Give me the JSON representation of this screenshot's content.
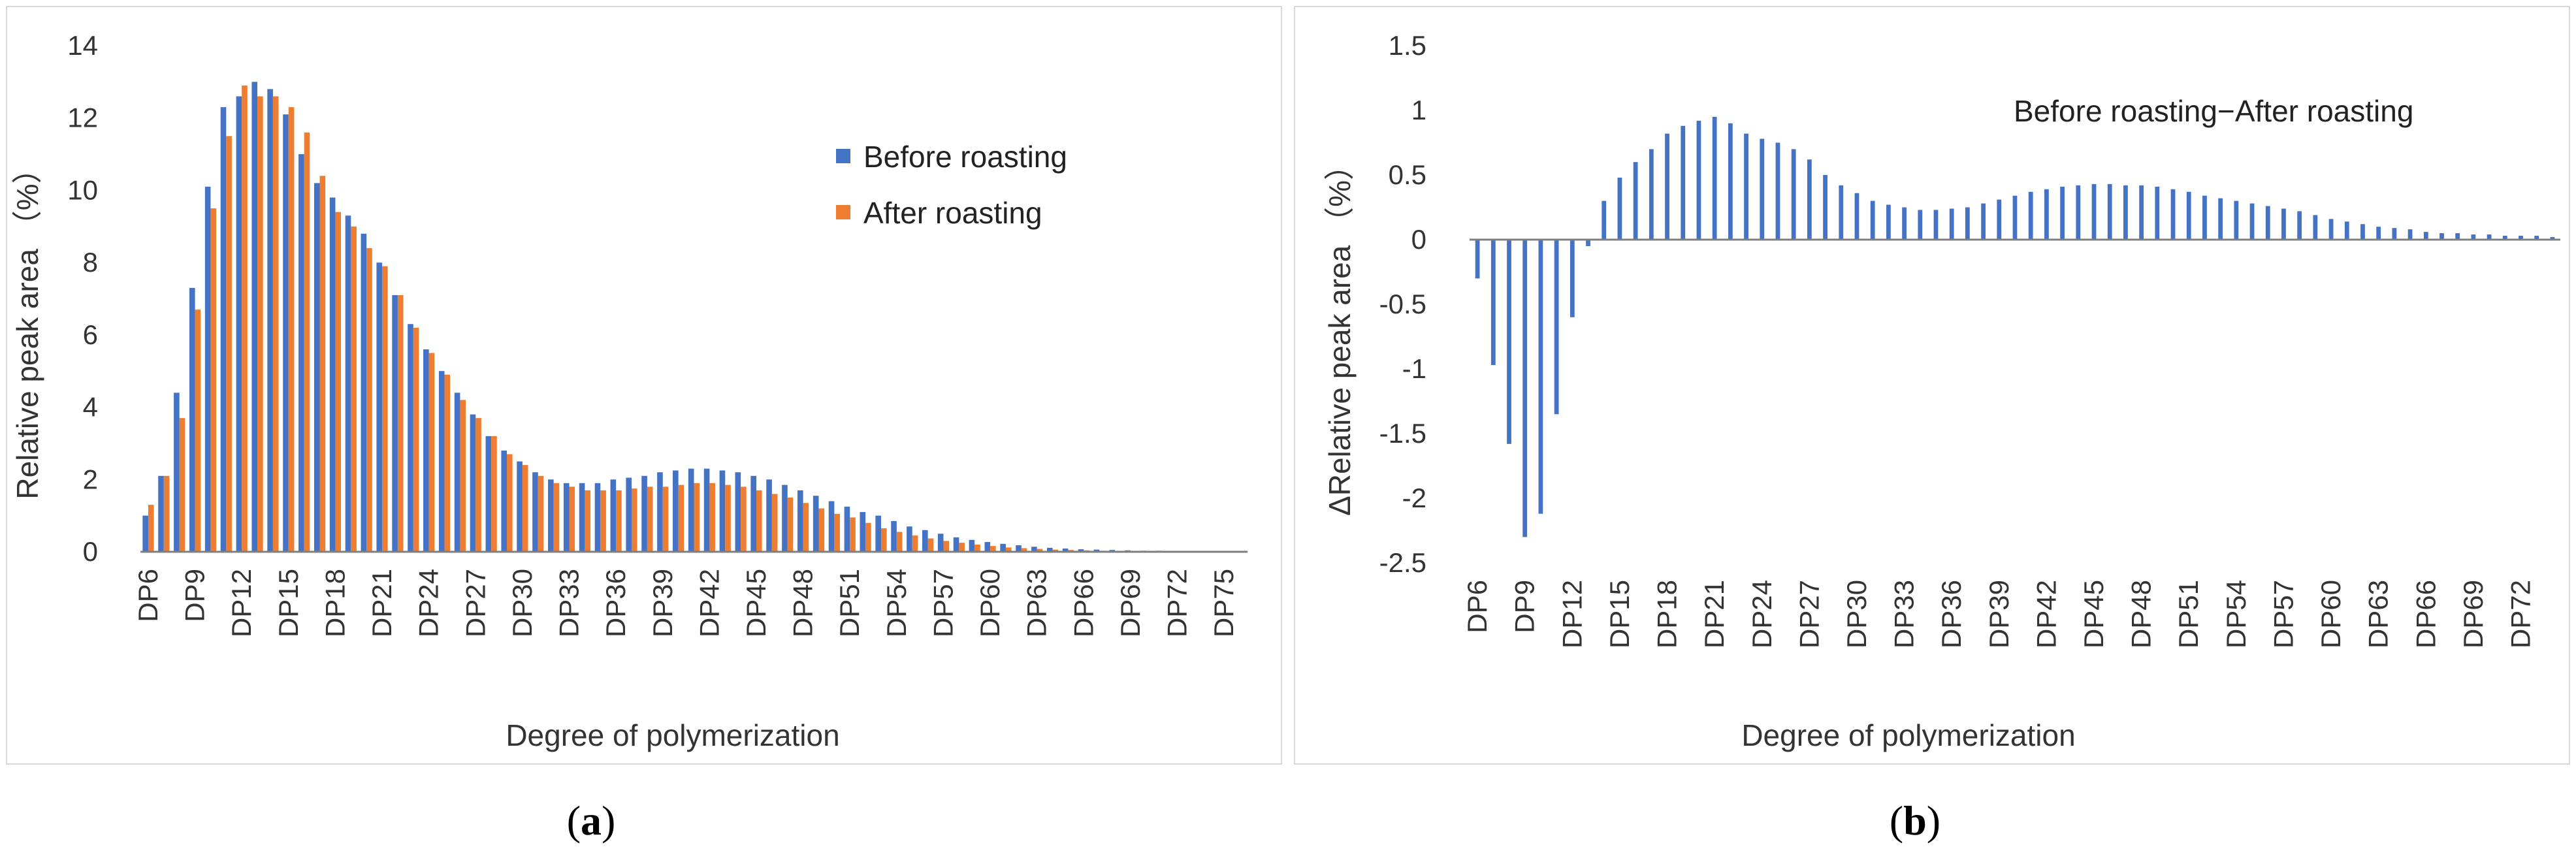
{
  "colors": {
    "before": "#4472C4",
    "after": "#ED7D31",
    "axis": "#7f7f7f",
    "frame": "#bfbfbf"
  },
  "chart_data": [
    {
      "type": "bar",
      "panel_label_a": "(",
      "panel_label_b": "a",
      "panel_label_c": ")",
      "title": "",
      "xlabel": "Degree of polymerization",
      "ylabel": "Relative peak area （%）",
      "ylim": [
        0,
        14
      ],
      "yticks": [
        "0",
        "2",
        "4",
        "6",
        "8",
        "10",
        "12",
        "14"
      ],
      "xticklabels": [
        "DP6",
        "DP9",
        "DP12",
        "DP15",
        "DP18",
        "DP21",
        "DP24",
        "DP27",
        "DP30",
        "DP33",
        "DP36",
        "DP39",
        "DP42",
        "DP45",
        "DP48",
        "DP51",
        "DP54",
        "DP57",
        "DP60",
        "DP63",
        "DP66",
        "DP69",
        "DP72",
        "DP75"
      ],
      "categories": [
        "DP6",
        "DP7",
        "DP8",
        "DP9",
        "DP10",
        "DP11",
        "DP12",
        "DP13",
        "DP14",
        "DP15",
        "DP16",
        "DP17",
        "DP18",
        "DP19",
        "DP20",
        "DP21",
        "DP22",
        "DP23",
        "DP24",
        "DP25",
        "DP26",
        "DP27",
        "DP28",
        "DP29",
        "DP30",
        "DP31",
        "DP32",
        "DP33",
        "DP34",
        "DP35",
        "DP36",
        "DP37",
        "DP38",
        "DP39",
        "DP40",
        "DP41",
        "DP42",
        "DP43",
        "DP44",
        "DP45",
        "DP46",
        "DP47",
        "DP48",
        "DP49",
        "DP50",
        "DP51",
        "DP52",
        "DP53",
        "DP54",
        "DP55",
        "DP56",
        "DP57",
        "DP58",
        "DP59",
        "DP60",
        "DP61",
        "DP62",
        "DP63",
        "DP64",
        "DP65",
        "DP66",
        "DP67",
        "DP68",
        "DP69",
        "DP70",
        "DP71",
        "DP72",
        "DP73",
        "DP74",
        "DP75",
        "DP76"
      ],
      "legend": [
        "Before roasting",
        "After roasting"
      ],
      "series": [
        {
          "name": "Before roasting",
          "values": [
            1.0,
            2.1,
            4.4,
            7.3,
            10.1,
            12.3,
            12.6,
            13.0,
            12.8,
            12.1,
            11.0,
            10.2,
            9.8,
            9.3,
            8.8,
            8.0,
            7.1,
            6.3,
            5.6,
            5.0,
            4.4,
            3.8,
            3.2,
            2.8,
            2.5,
            2.2,
            2.0,
            1.9,
            1.9,
            1.9,
            2.0,
            2.05,
            2.1,
            2.2,
            2.25,
            2.3,
            2.3,
            2.25,
            2.2,
            2.1,
            2.0,
            1.85,
            1.7,
            1.55,
            1.4,
            1.25,
            1.1,
            1.0,
            0.85,
            0.7,
            0.6,
            0.5,
            0.4,
            0.33,
            0.27,
            0.22,
            0.18,
            0.14,
            0.11,
            0.09,
            0.07,
            0.06,
            0.05,
            0.04,
            0.03,
            0.03,
            0.02,
            0.02,
            0.01,
            0.01,
            0.01
          ]
        },
        {
          "name": "After roasting",
          "values": [
            1.3,
            2.1,
            3.7,
            6.7,
            9.5,
            11.5,
            12.9,
            12.6,
            12.6,
            12.3,
            11.6,
            10.4,
            9.4,
            9.0,
            8.4,
            7.9,
            7.1,
            6.2,
            5.5,
            4.9,
            4.2,
            3.7,
            3.2,
            2.7,
            2.4,
            2.1,
            1.9,
            1.8,
            1.7,
            1.7,
            1.7,
            1.75,
            1.8,
            1.8,
            1.85,
            1.9,
            1.9,
            1.85,
            1.8,
            1.7,
            1.6,
            1.5,
            1.35,
            1.2,
            1.05,
            0.95,
            0.8,
            0.65,
            0.55,
            0.45,
            0.37,
            0.3,
            0.25,
            0.2,
            0.16,
            0.12,
            0.1,
            0.08,
            0.06,
            0.05,
            0.04,
            0.03,
            0.02,
            0.02,
            0.01,
            0.01,
            0.01,
            0.01,
            0.0,
            0.0,
            0.0
          ]
        }
      ]
    },
    {
      "type": "bar",
      "panel_label_a": "(",
      "panel_label_b": "b",
      "panel_label_c": ")",
      "title": "Before roasting−After roasting",
      "xlabel": "Degree of polymerization",
      "ylabel": "ΔRelative peak area （%）",
      "ylim": [
        -2.5,
        1.5
      ],
      "yticks": [
        "1.5",
        "1",
        "0.5",
        "0",
        "-0.5",
        "-1",
        "-1.5",
        "-2",
        "-2.5"
      ],
      "ytick_values": [
        1.5,
        1,
        0.5,
        0,
        -0.5,
        -1,
        -1.5,
        -2,
        -2.5
      ],
      "xticklabels": [
        "DP6",
        "DP9",
        "DP12",
        "DP15",
        "DP18",
        "DP21",
        "DP24",
        "DP27",
        "DP30",
        "DP33",
        "DP36",
        "DP39",
        "DP42",
        "DP45",
        "DP48",
        "DP51",
        "DP54",
        "DP57",
        "DP60",
        "DP63",
        "DP66",
        "DP69",
        "DP72"
      ],
      "categories": [
        "DP6",
        "DP7",
        "DP8",
        "DP9",
        "DP10",
        "DP11",
        "DP12",
        "DP13",
        "DP14",
        "DP15",
        "DP16",
        "DP17",
        "DP18",
        "DP19",
        "DP20",
        "DP21",
        "DP22",
        "DP23",
        "DP24",
        "DP25",
        "DP26",
        "DP27",
        "DP28",
        "DP29",
        "DP30",
        "DP31",
        "DP32",
        "DP33",
        "DP34",
        "DP35",
        "DP36",
        "DP37",
        "DP38",
        "DP39",
        "DP40",
        "DP41",
        "DP42",
        "DP43",
        "DP44",
        "DP45",
        "DP46",
        "DP47",
        "DP48",
        "DP49",
        "DP50",
        "DP51",
        "DP52",
        "DP53",
        "DP54",
        "DP55",
        "DP56",
        "DP57",
        "DP58",
        "DP59",
        "DP60",
        "DP61",
        "DP62",
        "DP63",
        "DP64",
        "DP65",
        "DP66",
        "DP67",
        "DP68",
        "DP69",
        "DP70",
        "DP71",
        "DP72",
        "DP73",
        "DP74"
      ],
      "series": [
        {
          "name": "Before roasting−After roasting",
          "values": [
            -0.3,
            -0.97,
            -1.58,
            -2.3,
            -2.12,
            -1.35,
            -0.6,
            -0.05,
            0.3,
            0.48,
            0.6,
            0.7,
            0.82,
            0.88,
            0.92,
            0.95,
            0.9,
            0.82,
            0.78,
            0.75,
            0.7,
            0.62,
            0.5,
            0.42,
            0.36,
            0.3,
            0.27,
            0.25,
            0.23,
            0.23,
            0.24,
            0.25,
            0.28,
            0.31,
            0.34,
            0.37,
            0.39,
            0.41,
            0.42,
            0.43,
            0.43,
            0.42,
            0.42,
            0.41,
            0.39,
            0.37,
            0.34,
            0.32,
            0.3,
            0.28,
            0.26,
            0.24,
            0.22,
            0.19,
            0.16,
            0.14,
            0.12,
            0.1,
            0.09,
            0.08,
            0.06,
            0.05,
            0.05,
            0.04,
            0.04,
            0.03,
            0.03,
            0.03,
            0.02
          ]
        }
      ]
    }
  ]
}
